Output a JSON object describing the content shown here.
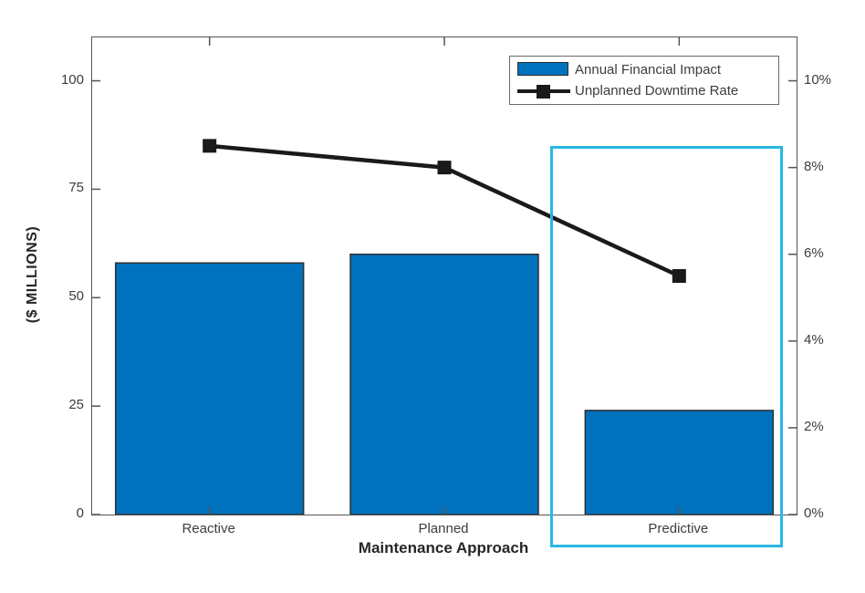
{
  "figure": {
    "background": "#ffffff",
    "axis_color": "#545454",
    "text_color": "#3d3d3d"
  },
  "chart_data": {
    "type": "bar",
    "subtype": "bar+line dual axis",
    "categories": [
      "Reactive",
      "Planned",
      "Predictive"
    ],
    "series": [
      {
        "name": "Annual Financial Impact",
        "type": "bar",
        "axis": "left",
        "values": [
          58,
          60,
          24
        ],
        "color": "#0072BD",
        "edge_color": "#2f2f2f"
      },
      {
        "name": "Unplanned Downtime Rate",
        "type": "line",
        "axis": "right",
        "values": [
          8.5,
          8.0,
          5.5
        ],
        "color": "#1a1a1a",
        "marker": "square"
      }
    ],
    "title": "",
    "xlabel": "Maintenance Approach",
    "ylabel_left": "($ MILLIONS)",
    "ylabel_right": "",
    "left_axis": {
      "lim": [
        0,
        110
      ],
      "ticks": [
        0,
        25,
        50,
        75,
        100
      ],
      "labels": [
        "0",
        "25",
        "50",
        "75",
        "100"
      ]
    },
    "right_axis": {
      "lim": [
        0,
        11
      ],
      "ticks": [
        0,
        2,
        4,
        6,
        8,
        10
      ],
      "labels": [
        "0%",
        "2%",
        "4%",
        "6%",
        "8%",
        "10%"
      ]
    },
    "grid": false,
    "legend": {
      "position": "top-right",
      "entries": [
        "Annual Financial Impact",
        "Unplanned Downtime Rate"
      ]
    },
    "highlight": {
      "category": "Predictive",
      "color": "#29B7E5",
      "note": "cyan box around Predictive column"
    }
  }
}
